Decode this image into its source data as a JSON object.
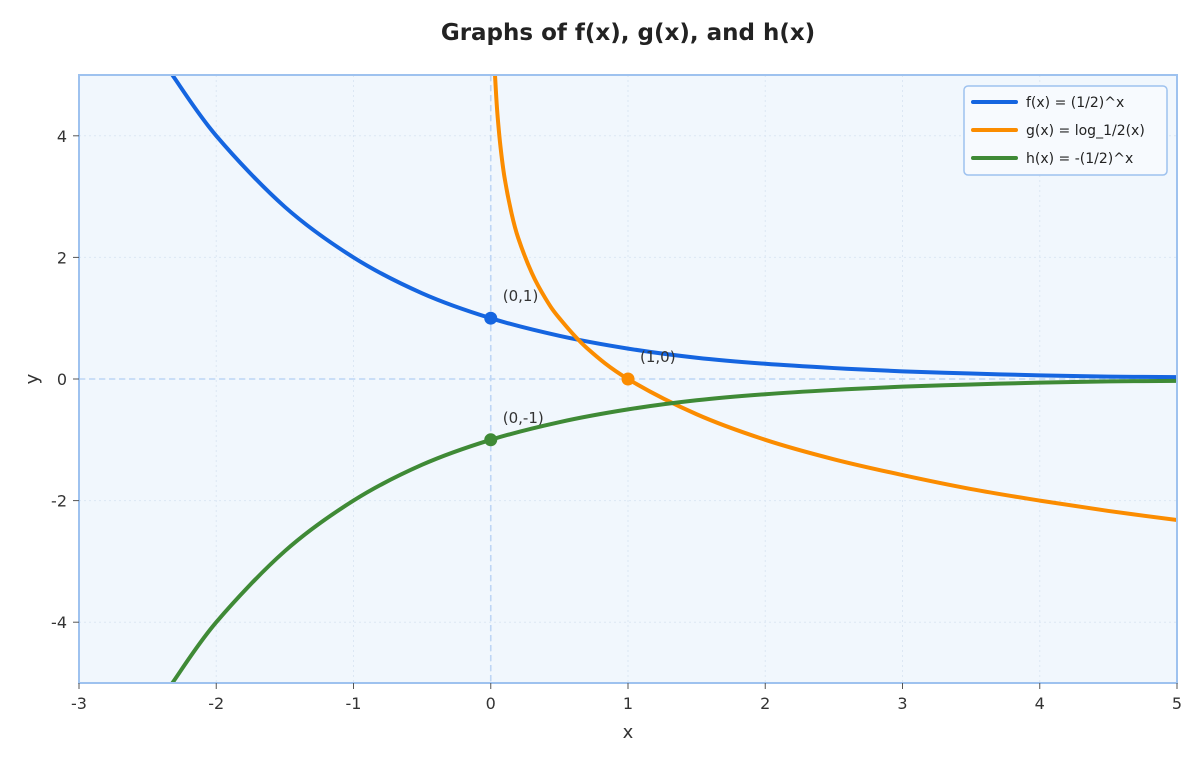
{
  "chart_data": {
    "type": "line",
    "title": "Graphs of f(x), g(x), and h(x)",
    "xlabel": "x",
    "ylabel": "y",
    "xlim": [
      -3,
      5
    ],
    "ylim": [
      -5,
      5
    ],
    "xticks": [
      -3,
      -2,
      -1,
      0,
      1,
      2,
      3,
      4,
      5
    ],
    "yticks": [
      -4,
      -2,
      0,
      2,
      4
    ],
    "grid": true,
    "legend_position": "top-right",
    "series": [
      {
        "name": "f(x) = (1/2)^x",
        "color": "#1565e0",
        "x": [
          -2.32,
          -2,
          -1.5,
          -1,
          -0.5,
          0,
          0.5,
          1,
          1.5,
          2,
          2.5,
          3,
          3.5,
          4,
          4.5,
          5
        ],
        "y": [
          5.0,
          4.0,
          2.83,
          2.0,
          1.41,
          1.0,
          0.71,
          0.5,
          0.35,
          0.25,
          0.18,
          0.125,
          0.09,
          0.06,
          0.04,
          0.03
        ]
      },
      {
        "name": "g(x) = log_1/2(x)",
        "color": "#fb8c00",
        "x": [
          0.031,
          0.04,
          0.05,
          0.07,
          0.1,
          0.15,
          0.2,
          0.3,
          0.4,
          0.5,
          0.7,
          1,
          1.5,
          2,
          2.5,
          3,
          3.5,
          4,
          4.5,
          5
        ],
        "y": [
          5.0,
          4.64,
          4.32,
          3.84,
          3.32,
          2.74,
          2.32,
          1.74,
          1.32,
          1.0,
          0.51,
          0,
          -0.58,
          -1.0,
          -1.32,
          -1.58,
          -1.81,
          -2.0,
          -2.17,
          -2.32
        ]
      },
      {
        "name": "h(x) = -(1/2)^x",
        "color": "#3f8a36",
        "x": [
          -2.32,
          -2,
          -1.5,
          -1,
          -0.5,
          0,
          0.5,
          1,
          1.5,
          2,
          2.5,
          3,
          3.5,
          4,
          4.5,
          5
        ],
        "y": [
          -5.0,
          -4.0,
          -2.83,
          -2.0,
          -1.41,
          -1.0,
          -0.71,
          -0.5,
          -0.35,
          -0.25,
          -0.18,
          -0.125,
          -0.09,
          -0.06,
          -0.04,
          -0.03
        ]
      }
    ],
    "points": [
      {
        "label": "(0,1)",
        "x": 0,
        "y": 1,
        "color": "#1565e0"
      },
      {
        "label": "(1,0)",
        "x": 1,
        "y": 0,
        "color": "#fb8c00"
      },
      {
        "label": "(0,-1)",
        "x": 0,
        "y": -1,
        "color": "#3f8a36"
      }
    ],
    "colors": {
      "plot_background": "#f1f7fd",
      "axes_border": "#9ec2ef",
      "grid": "#dce7f4",
      "zero_lines": "#bed6f5",
      "legend_border": "#9ec2ef"
    }
  }
}
